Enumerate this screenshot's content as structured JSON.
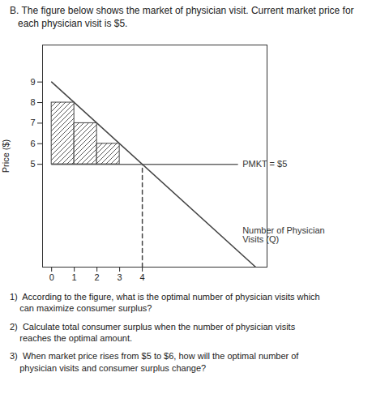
{
  "chart_data": {
    "type": "line",
    "title": "B. The figure below shows the market of physician visit. Current market price for\n   each physician visit is $5.",
    "xlabel": "Number of Physician\nVisits (Q)",
    "ylabel": "Price ($)",
    "xlim": [
      -0.4,
      9.5
    ],
    "ylim": [
      0,
      10.8
    ],
    "xticks": [
      0,
      1,
      2,
      3,
      4
    ],
    "yticks": [
      5,
      6,
      7,
      8,
      9
    ],
    "series": [
      {
        "type": "line",
        "x": [
          0,
          9
        ],
        "values": [
          9,
          0
        ],
        "color": "#444444"
      },
      {
        "type": "line",
        "x": [
          0,
          8.2
        ],
        "values": [
          5,
          5
        ],
        "color": "#666666"
      },
      {
        "type": "line",
        "x": [
          4,
          4
        ],
        "values": [
          0,
          5
        ],
        "color": "#444444",
        "line_style": "dashed"
      },
      {
        "type": "bar",
        "x": [
          0,
          1,
          2
        ],
        "values": [
          8,
          7,
          6
        ],
        "base": 5,
        "color": "#444444"
      }
    ],
    "annotations": [
      {
        "text": "PMKT = $5",
        "x": 8.2,
        "y": 5
      },
      "1)  According to the figure, what is the optimal number of physician visits which\n    can maximize consumer surplus?",
      "2)  Calculate total consumer surplus when the number of physician visits\n    reaches the optimal amount.",
      "3)  When market price rises from $5 to $6, how will the optimal number of\n    physician visits and consumer surplus change?"
    ]
  }
}
